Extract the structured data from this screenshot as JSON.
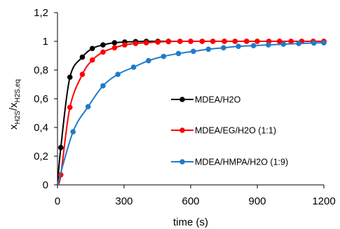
{
  "chart_data": {
    "type": "line",
    "xlabel": "time (s)",
    "ylabel": {
      "main": "x",
      "sub1": "H2S",
      "sep": "/x",
      "sub2": "H2S,eq"
    },
    "xlim": [
      0,
      1200
    ],
    "ylim": [
      0,
      1.2
    ],
    "xticks": [
      0,
      300,
      600,
      900,
      1200
    ],
    "xtick_labels": [
      "0",
      "300",
      "600",
      "900",
      "1200"
    ],
    "yticks": [
      0,
      0.2,
      0.4,
      0.6,
      0.8,
      1.0,
      1.2
    ],
    "ytick_labels": [
      "0",
      "0,2",
      "0,4",
      "0,6",
      "0,8",
      "1",
      "1,2"
    ],
    "grid": false,
    "legend_position": "center-right",
    "series": [
      {
        "name": "MDEA/H2O",
        "color": "#000000",
        "x": [
          15,
          56,
          112,
          157,
          205,
          257,
          303,
          352,
          400,
          452,
          500,
          552,
          600,
          652,
          700,
          752,
          800,
          852,
          900,
          952,
          1000,
          1052,
          1100,
          1152,
          1200
        ],
        "y": [
          0.26,
          0.75,
          0.89,
          0.95,
          0.975,
          0.99,
          0.995,
          0.998,
          1.0,
          1.0,
          1.0,
          1.0,
          1.0,
          1.0,
          1.0,
          1.0,
          1.0,
          1.0,
          1.0,
          1.0,
          1.0,
          1.0,
          1.0,
          1.0,
          1.0
        ]
      },
      {
        "name": "MDEA/EG/H2O (1:1)",
        "color": "#ff0000",
        "x": [
          15,
          56,
          112,
          157,
          205,
          257,
          303,
          352,
          400,
          452,
          500,
          552,
          600,
          652,
          700,
          752,
          800,
          852,
          900,
          952,
          1000,
          1052,
          1100,
          1152,
          1200
        ],
        "y": [
          0.07,
          0.54,
          0.77,
          0.87,
          0.925,
          0.955,
          0.975,
          0.985,
          0.99,
          0.995,
          0.998,
          1.0,
          1.0,
          1.0,
          1.0,
          1.0,
          1.0,
          1.0,
          1.0,
          1.0,
          1.0,
          1.0,
          1.0,
          1.0,
          1.0
        ]
      },
      {
        "name": "MDEA/HMPA/H2O (1:9)",
        "color": "#1f7cc9",
        "x": [
          70,
          138,
          205,
          272,
          343,
          410,
          478,
          545,
          612,
          680,
          748,
          815,
          883,
          950,
          1018,
          1087,
          1155,
          1200
        ],
        "y": [
          0.37,
          0.545,
          0.69,
          0.77,
          0.82,
          0.865,
          0.895,
          0.915,
          0.93,
          0.945,
          0.955,
          0.965,
          0.97,
          0.975,
          0.98,
          0.985,
          0.988,
          0.99
        ]
      }
    ]
  }
}
